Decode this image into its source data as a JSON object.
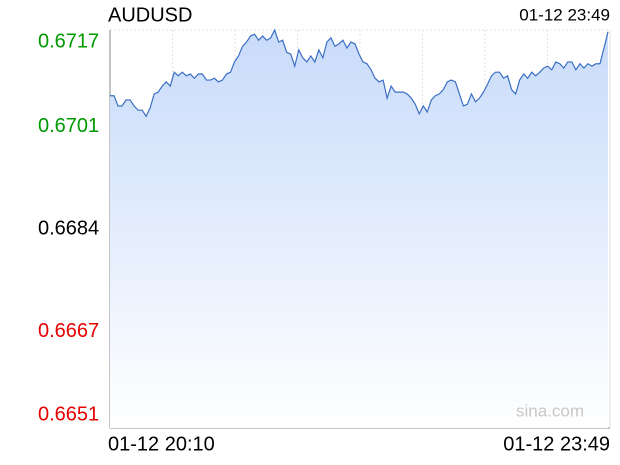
{
  "chart_data": {
    "type": "line",
    "title": "AUDUSD",
    "time": "01-12 23:49",
    "watermark": "sina.com",
    "categories": [
      "01-12 20:10",
      null,
      null,
      null,
      null,
      null,
      null,
      null,
      null,
      null,
      null,
      null,
      null,
      null,
      null,
      null,
      null,
      null,
      null,
      null,
      null,
      null,
      null,
      null,
      null,
      null,
      null,
      null,
      null,
      null,
      null,
      null,
      null,
      null,
      null,
      null,
      null,
      null,
      null,
      null,
      null,
      null,
      null,
      null,
      null,
      null,
      null,
      null,
      null,
      null,
      null,
      null,
      null,
      null,
      null,
      null,
      null,
      null,
      null,
      null,
      null,
      null,
      null,
      null,
      null,
      null,
      null,
      null,
      null,
      null,
      null,
      null,
      null,
      null,
      null,
      null,
      null,
      null,
      null,
      null,
      null,
      null,
      null,
      null,
      null,
      null,
      null,
      null,
      null,
      null,
      null,
      null,
      null,
      null,
      null,
      null,
      null,
      null,
      null,
      null,
      null,
      null,
      null,
      null,
      null,
      null,
      null,
      null,
      null,
      null,
      null,
      null,
      null,
      null,
      null,
      null,
      null,
      null,
      null,
      null,
      null,
      null,
      null,
      null,
      "01-12 23:49"
    ],
    "series": [
      {
        "name": "AUDUSD",
        "color": "#3a6fc4",
        "values": [
          0.67061,
          0.67061,
          0.67044,
          0.67044,
          0.67054,
          0.67054,
          0.67044,
          0.67037,
          0.67037,
          0.67027,
          0.67041,
          0.67064,
          0.67067,
          0.67077,
          0.67084,
          0.67077,
          0.671,
          0.67094,
          0.671,
          0.67094,
          0.67097,
          0.6709,
          0.67097,
          0.67097,
          0.67087,
          0.67087,
          0.6709,
          0.67084,
          0.67087,
          0.67097,
          0.671,
          0.67117,
          0.67127,
          0.67143,
          0.6715,
          0.6716,
          0.67163,
          0.67153,
          0.6716,
          0.67153,
          0.67157,
          0.6717,
          0.6715,
          0.67153,
          0.67133,
          0.6713,
          0.6711,
          0.67137,
          0.67124,
          0.67117,
          0.67127,
          0.67117,
          0.67137,
          0.67124,
          0.6715,
          0.67157,
          0.67143,
          0.67147,
          0.67153,
          0.6714,
          0.6715,
          0.67147,
          0.6713,
          0.67117,
          0.67114,
          0.67104,
          0.6709,
          0.67084,
          0.67087,
          0.67057,
          0.67077,
          0.67067,
          0.67067,
          0.67067,
          0.67064,
          0.67057,
          0.67047,
          0.67031,
          0.67044,
          0.67034,
          0.67054,
          0.67061,
          0.67064,
          0.67071,
          0.67084,
          0.67087,
          0.67084,
          0.67064,
          0.67044,
          0.67047,
          0.67064,
          0.67051,
          0.67057,
          0.67067,
          0.6708,
          0.67094,
          0.671,
          0.671,
          0.6709,
          0.67094,
          0.67071,
          0.67064,
          0.67087,
          0.67097,
          0.6709,
          0.671,
          0.67094,
          0.671,
          0.67107,
          0.6711,
          0.67104,
          0.67117,
          0.67114,
          0.67107,
          0.67117,
          0.67117,
          0.67104,
          0.67114,
          0.67107,
          0.67114,
          0.6711,
          0.67114,
          0.67114,
          0.6714,
          0.67167
        ]
      }
    ],
    "ylim": [
      0.6651,
      0.6717
    ],
    "yticks": [
      0.6651,
      0.6667,
      0.6684,
      0.6701,
      0.6717
    ],
    "reference": 0.6684,
    "up_color": "#009900",
    "down_color": "#e60000",
    "flat_color": "#000000",
    "fill_color": "#c8dbfa",
    "grid": true
  }
}
